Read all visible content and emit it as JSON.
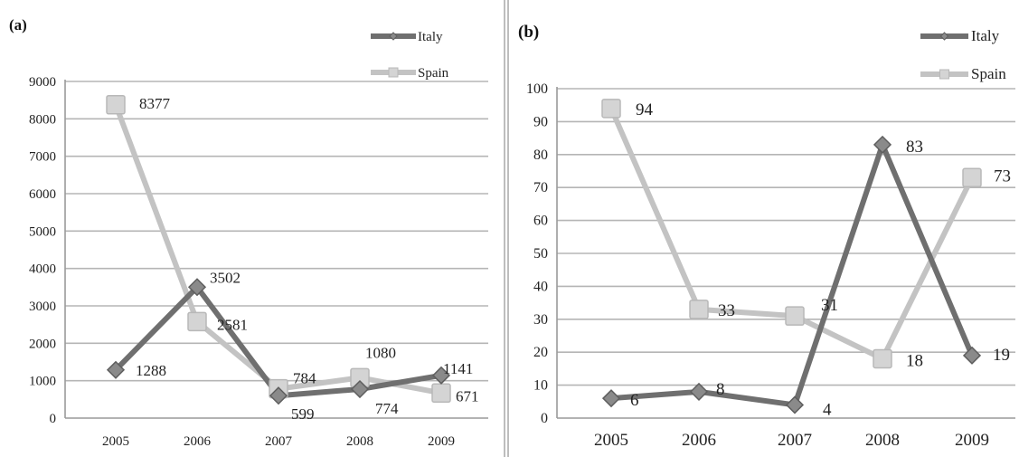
{
  "chart_data": [
    {
      "type": "line",
      "panel_label": "(a)",
      "categories": [
        "2005",
        "2006",
        "2007",
        "2008",
        "2009"
      ],
      "series": [
        {
          "name": "Italy",
          "values": [
            1288,
            3502,
            599,
            774,
            1141
          ],
          "color": "#6f6f6f",
          "marker": "diamond"
        },
        {
          "name": "Spain",
          "values": [
            8377,
            2581,
            784,
            1080,
            671
          ],
          "color": "#c3c3c3",
          "marker": "square"
        }
      ],
      "yticks": [
        "0",
        "1000",
        "2000",
        "3000",
        "4000",
        "5000",
        "6000",
        "7000",
        "8000",
        "9000"
      ],
      "ylim": [
        0,
        9000
      ],
      "grid": true,
      "legend": "top-right"
    },
    {
      "type": "line",
      "panel_label": "(b)",
      "categories": [
        "2005",
        "2006",
        "2007",
        "2008",
        "2009"
      ],
      "series": [
        {
          "name": "Italy",
          "values": [
            6,
            8,
            4,
            83,
            19
          ],
          "color": "#6f6f6f",
          "marker": "diamond"
        },
        {
          "name": "Spain",
          "values": [
            94,
            33,
            31,
            18,
            73
          ],
          "color": "#c3c3c3",
          "marker": "square"
        }
      ],
      "yticks": [
        "0",
        "10",
        "20",
        "30",
        "40",
        "50",
        "60",
        "70",
        "80",
        "90",
        "100"
      ],
      "ylim": [
        0,
        100
      ],
      "grid": true,
      "legend": "top-right"
    }
  ]
}
